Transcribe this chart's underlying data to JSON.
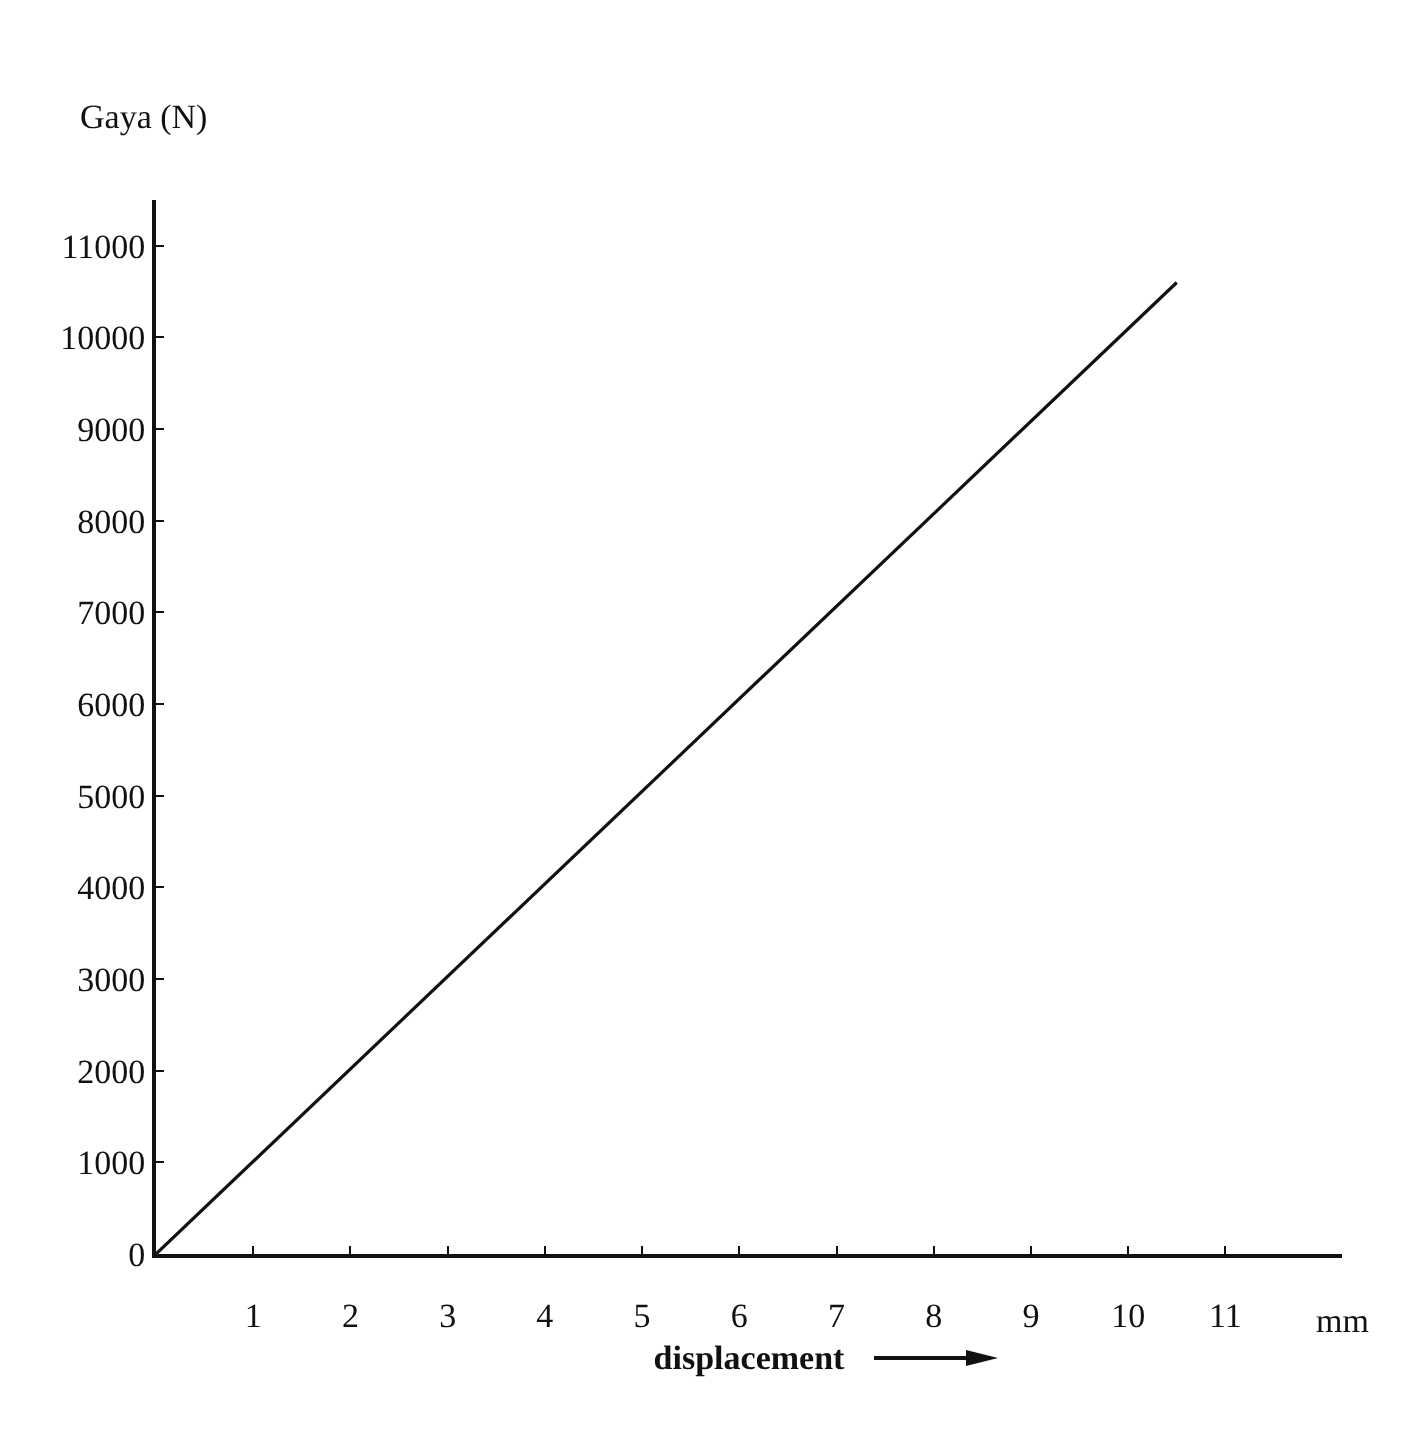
{
  "chart_data": {
    "type": "line",
    "ylabel": "Gaya (N)",
    "xlabel": "displacement",
    "annotations": [
      "mm"
    ],
    "x": [
      0,
      10.5
    ],
    "series": [
      {
        "color": "#111111",
        "values": [
          0,
          10600
        ]
      }
    ],
    "xlim": [
      0,
      12.2
    ],
    "ylim": [
      0,
      11500
    ],
    "xticks": [
      1,
      2,
      3,
      4,
      5,
      6,
      7,
      8,
      9,
      10,
      11
    ],
    "yticks": [
      0,
      1000,
      2000,
      3000,
      4000,
      5000,
      6000,
      7000,
      8000,
      9000,
      10000,
      11000
    ],
    "marker": "none",
    "line_style": "solid"
  }
}
